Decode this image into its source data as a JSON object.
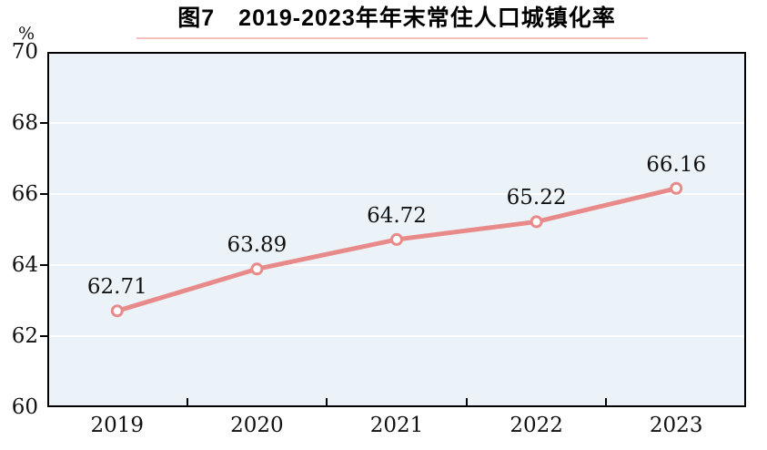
{
  "title": "图7　2019-2023年年末常住人口城镇化率",
  "y_axis_unit": "%",
  "chart_data": {
    "type": "line",
    "title": "图7　2019-2023年年末常住人口城镇化率",
    "categories": [
      "2019",
      "2020",
      "2021",
      "2022",
      "2023"
    ],
    "series": [
      {
        "name": "年末常住人口城镇化率",
        "values": [
          62.71,
          63.89,
          64.72,
          65.22,
          66.16
        ]
      }
    ],
    "data_labels": [
      "62.71",
      "63.89",
      "64.72",
      "65.22",
      "66.16"
    ],
    "xlabel": "",
    "ylabel": "%",
    "ylim": [
      60,
      70
    ],
    "yticks": [
      60,
      62,
      64,
      66,
      68,
      70
    ],
    "grid": true,
    "legend_position": "none",
    "colors": {
      "line": "#e98a8a",
      "marker_fill": "#ffffff",
      "marker_stroke": "#e98a8a",
      "plot_background": "#ecf3f8",
      "gridline": "#ffffff",
      "axis": "#000000",
      "title_underline": "#e78c8c",
      "text": "#111111"
    }
  }
}
